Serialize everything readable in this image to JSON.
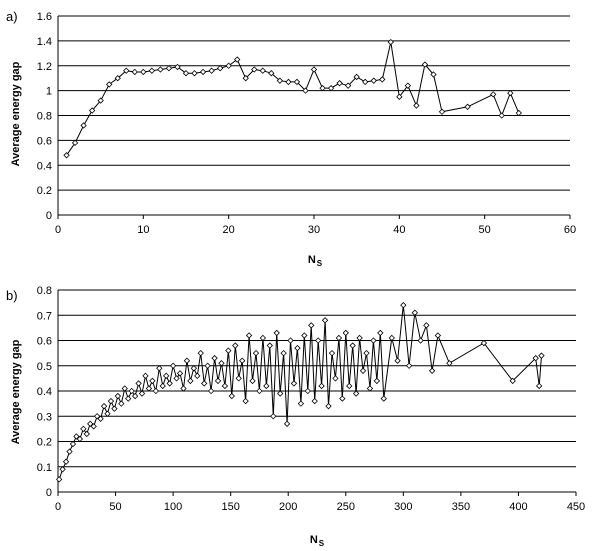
{
  "chart_data": [
    {
      "type": "line",
      "panel_label": "a)",
      "xlabel": "N",
      "xlabel_sub": "S",
      "ylabel": "Average energy gap",
      "xlim": [
        0,
        60
      ],
      "ylim": [
        0,
        1.6
      ],
      "x_ticks": [
        "0",
        "10",
        "20",
        "30",
        "40",
        "50",
        "60"
      ],
      "y_ticks": [
        "0",
        "0.2",
        "0.4",
        "0.6",
        "0.8",
        "1",
        "1.2",
        "1.4",
        "1.6"
      ],
      "grid": "horizontal",
      "marker": "open-diamond",
      "series": [
        {
          "x": [
            1,
            2,
            3,
            4,
            5,
            6,
            7,
            8,
            9,
            10,
            11,
            12,
            13,
            14,
            15,
            16,
            17,
            18,
            19,
            20,
            21,
            22,
            23,
            24,
            25,
            26,
            27,
            28,
            29,
            30,
            31,
            32,
            33,
            34,
            35,
            36,
            37,
            38,
            39,
            40,
            41,
            42,
            43,
            44,
            45,
            48,
            51,
            52,
            53,
            54
          ],
          "y": [
            0.48,
            0.58,
            0.72,
            0.84,
            0.92,
            1.05,
            1.1,
            1.16,
            1.15,
            1.15,
            1.16,
            1.17,
            1.18,
            1.19,
            1.14,
            1.14,
            1.15,
            1.16,
            1.18,
            1.2,
            1.25,
            1.1,
            1.17,
            1.16,
            1.14,
            1.08,
            1.07,
            1.07,
            1.0,
            1.17,
            1.02,
            1.02,
            1.06,
            1.04,
            1.11,
            1.07,
            1.08,
            1.09,
            1.39,
            0.95,
            1.04,
            0.88,
            1.21,
            1.13,
            0.83,
            0.87,
            0.97,
            0.8,
            0.98,
            0.82
          ]
        }
      ]
    },
    {
      "type": "line",
      "panel_label": "b)",
      "xlabel": "N",
      "xlabel_sub": "S",
      "ylabel": "Average energy gap",
      "xlim": [
        0,
        450
      ],
      "ylim": [
        0,
        0.8
      ],
      "x_ticks": [
        "0",
        "50",
        "100",
        "150",
        "200",
        "250",
        "300",
        "350",
        "400",
        "450"
      ],
      "y_ticks": [
        "0",
        "0.1",
        "0.2",
        "0.3",
        "0.4",
        "0.5",
        "0.6",
        "0.7",
        "0.8"
      ],
      "grid": "horizontal",
      "marker": "open-diamond",
      "series": [
        {
          "x": [
            1,
            4,
            7,
            10,
            13,
            16,
            19,
            22,
            25,
            28,
            31,
            34,
            37,
            40,
            43,
            46,
            49,
            52,
            55,
            58,
            61,
            64,
            67,
            70,
            73,
            76,
            79,
            82,
            85,
            88,
            91,
            94,
            97,
            100,
            103,
            106,
            109,
            112,
            115,
            118,
            121,
            124,
            127,
            130,
            133,
            136,
            139,
            142,
            145,
            148,
            151,
            154,
            157,
            160,
            163,
            166,
            169,
            172,
            175,
            178,
            181,
            184,
            187,
            190,
            193,
            196,
            199,
            202,
            205,
            208,
            211,
            214,
            217,
            220,
            223,
            226,
            229,
            232,
            235,
            238,
            241,
            244,
            247,
            250,
            253,
            256,
            259,
            262,
            265,
            268,
            271,
            274,
            277,
            280,
            283,
            290,
            295,
            300,
            305,
            310,
            315,
            320,
            325,
            330,
            340,
            370,
            395,
            415,
            418,
            420
          ],
          "y": [
            0.05,
            0.09,
            0.12,
            0.16,
            0.19,
            0.22,
            0.21,
            0.25,
            0.23,
            0.27,
            0.26,
            0.3,
            0.29,
            0.34,
            0.31,
            0.36,
            0.33,
            0.38,
            0.35,
            0.41,
            0.37,
            0.4,
            0.38,
            0.43,
            0.39,
            0.46,
            0.41,
            0.44,
            0.4,
            0.49,
            0.42,
            0.46,
            0.43,
            0.5,
            0.45,
            0.47,
            0.41,
            0.52,
            0.44,
            0.49,
            0.46,
            0.55,
            0.43,
            0.5,
            0.4,
            0.53,
            0.44,
            0.51,
            0.42,
            0.56,
            0.38,
            0.58,
            0.45,
            0.52,
            0.36,
            0.62,
            0.44,
            0.55,
            0.4,
            0.61,
            0.42,
            0.58,
            0.3,
            0.63,
            0.39,
            0.55,
            0.27,
            0.6,
            0.43,
            0.57,
            0.35,
            0.62,
            0.4,
            0.66,
            0.36,
            0.6,
            0.42,
            0.68,
            0.34,
            0.55,
            0.45,
            0.61,
            0.37,
            0.63,
            0.42,
            0.58,
            0.39,
            0.61,
            0.48,
            0.55,
            0.41,
            0.6,
            0.44,
            0.63,
            0.37,
            0.61,
            0.52,
            0.74,
            0.5,
            0.71,
            0.6,
            0.66,
            0.48,
            0.62,
            0.51,
            0.59,
            0.44,
            0.53,
            0.42,
            0.54
          ]
        }
      ]
    }
  ]
}
